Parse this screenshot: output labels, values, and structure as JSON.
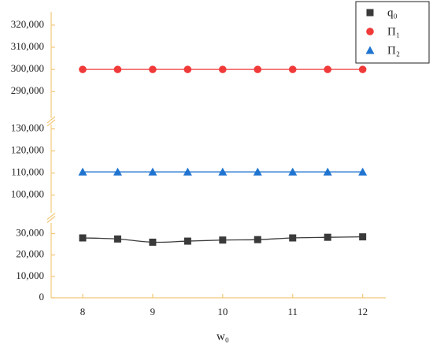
{
  "chart_data": {
    "type": "line",
    "x_label": "w₀",
    "x": [
      8,
      8.5,
      9,
      9.5,
      10,
      10.5,
      11,
      11.5,
      12
    ],
    "xlim": [
      7.55,
      12.33
    ],
    "xticks": [
      8,
      9,
      10,
      11,
      12
    ],
    "y_segments": [
      {
        "ylim": [
          0,
          35000
        ],
        "yticks": [
          0,
          {
            "value": 10000,
            "label": "10,000"
          },
          {
            "value": 20000,
            "label": "20,000"
          },
          {
            "value": 30000,
            "label": "30,000"
          }
        ]
      },
      {
        "ylim": [
          92000,
          132000
        ],
        "yticks": [
          {
            "value": 100000,
            "label": "100,000"
          },
          {
            "value": 110000,
            "label": "110,000"
          },
          {
            "value": 120000,
            "label": "120,000"
          },
          {
            "value": 130000,
            "label": "130,000"
          }
        ]
      },
      {
        "ylim": [
          278000,
          326000
        ],
        "yticks": [
          {
            "value": 290000,
            "label": "290,000"
          },
          {
            "value": 300000,
            "label": "300,000"
          },
          {
            "value": 310000,
            "label": "310,000"
          },
          {
            "value": 320000,
            "label": "320,000"
          }
        ]
      }
    ],
    "series": [
      {
        "name": "q₀",
        "color": "#3a3a3a",
        "marker": "square",
        "values": [
          28000,
          27500,
          26000,
          26500,
          27000,
          27200,
          28000,
          28300,
          28500
        ]
      },
      {
        "name": "Π₁",
        "color": "#f03a3a",
        "marker": "circle",
        "values": [
          300000,
          300000,
          300000,
          300000,
          300000,
          300000,
          300000,
          300000,
          300000
        ]
      },
      {
        "name": "Π₂",
        "color": "#1f74d0",
        "marker": "triangle",
        "values": [
          110500,
          110500,
          110500,
          110500,
          110500,
          110500,
          110500,
          110500,
          110500
        ]
      }
    ]
  }
}
